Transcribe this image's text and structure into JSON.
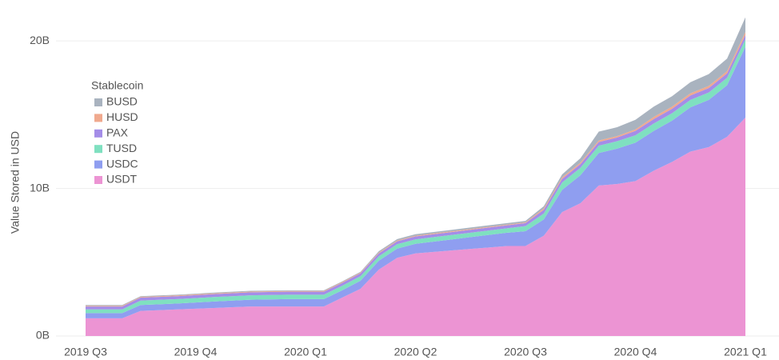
{
  "chart_data": {
    "type": "stacked-area",
    "y_label": "Value Stored in USD",
    "legend_title": "Stablecoin",
    "legend": "upper-left",
    "grid": true,
    "categories": [
      "2019 Q3",
      null,
      null,
      null,
      null,
      null,
      "2019 Q4",
      null,
      null,
      null,
      null,
      null,
      "2020 Q1",
      null,
      null,
      null,
      null,
      null,
      "2020 Q2",
      null,
      null,
      null,
      null,
      null,
      "2020 Q3",
      null,
      null,
      null,
      null,
      null,
      "2020 Q4",
      null,
      null,
      null,
      null,
      null,
      "2021 Q1"
    ],
    "ylim": [
      0,
      22.5
    ],
    "yticks": [
      {
        "value": 0,
        "label": "0B"
      },
      {
        "value": 10,
        "label": "10B"
      },
      {
        "value": 20,
        "label": "20B"
      }
    ],
    "series": [
      {
        "name": "USDT",
        "color": "#ec94d3",
        "values": [
          1.2,
          1.2,
          1.2,
          1.7,
          1.75,
          1.8,
          1.85,
          1.9,
          1.95,
          2.0,
          2.0,
          2.0,
          2.0,
          2.0,
          2.6,
          3.2,
          4.5,
          5.3,
          5.6,
          5.7,
          5.8,
          5.9,
          6.0,
          6.1,
          6.1,
          6.8,
          8.4,
          9.0,
          10.2,
          10.3,
          10.5,
          11.2,
          11.8,
          12.5,
          12.8,
          13.5,
          14.8
        ]
      },
      {
        "name": "USDC",
        "color": "#8f9ef0",
        "values": [
          0.35,
          0.35,
          0.35,
          0.4,
          0.4,
          0.4,
          0.42,
          0.44,
          0.45,
          0.46,
          0.48,
          0.5,
          0.5,
          0.5,
          0.5,
          0.55,
          0.6,
          0.62,
          0.65,
          0.7,
          0.75,
          0.8,
          0.85,
          0.9,
          1.0,
          1.1,
          1.5,
          1.9,
          2.2,
          2.4,
          2.6,
          2.7,
          2.8,
          3.0,
          3.2,
          3.5,
          4.8
        ]
      },
      {
        "name": "TUSD",
        "color": "#7fe0c0",
        "values": [
          0.25,
          0.25,
          0.25,
          0.3,
          0.3,
          0.3,
          0.3,
          0.3,
          0.3,
          0.3,
          0.3,
          0.3,
          0.3,
          0.3,
          0.3,
          0.3,
          0.3,
          0.3,
          0.3,
          0.3,
          0.3,
          0.3,
          0.3,
          0.3,
          0.35,
          0.4,
          0.5,
          0.5,
          0.5,
          0.5,
          0.5,
          0.5,
          0.5,
          0.5,
          0.5,
          0.5,
          0.5
        ]
      },
      {
        "name": "PAX",
        "color": "#a48de8",
        "values": [
          0.2,
          0.2,
          0.2,
          0.2,
          0.2,
          0.2,
          0.2,
          0.2,
          0.2,
          0.2,
          0.2,
          0.2,
          0.2,
          0.2,
          0.2,
          0.2,
          0.2,
          0.2,
          0.2,
          0.2,
          0.2,
          0.2,
          0.2,
          0.2,
          0.2,
          0.25,
          0.25,
          0.25,
          0.25,
          0.25,
          0.3,
          0.3,
          0.3,
          0.3,
          0.3,
          0.3,
          0.3
        ]
      },
      {
        "name": "HUSD",
        "color": "#f0a98e",
        "values": [
          0.05,
          0.05,
          0.05,
          0.05,
          0.05,
          0.05,
          0.05,
          0.05,
          0.05,
          0.05,
          0.05,
          0.05,
          0.05,
          0.05,
          0.05,
          0.05,
          0.05,
          0.05,
          0.05,
          0.05,
          0.05,
          0.05,
          0.05,
          0.05,
          0.05,
          0.1,
          0.1,
          0.1,
          0.1,
          0.1,
          0.1,
          0.15,
          0.15,
          0.15,
          0.15,
          0.15,
          0.2
        ]
      },
      {
        "name": "BUSD",
        "color": "#a9b3bf",
        "values": [
          0.05,
          0.05,
          0.05,
          0.05,
          0.05,
          0.05,
          0.05,
          0.05,
          0.05,
          0.05,
          0.05,
          0.05,
          0.05,
          0.05,
          0.05,
          0.05,
          0.1,
          0.1,
          0.1,
          0.1,
          0.1,
          0.1,
          0.1,
          0.1,
          0.1,
          0.15,
          0.2,
          0.3,
          0.6,
          0.6,
          0.65,
          0.7,
          0.7,
          0.75,
          0.8,
          0.85,
          1.0
        ]
      }
    ]
  }
}
